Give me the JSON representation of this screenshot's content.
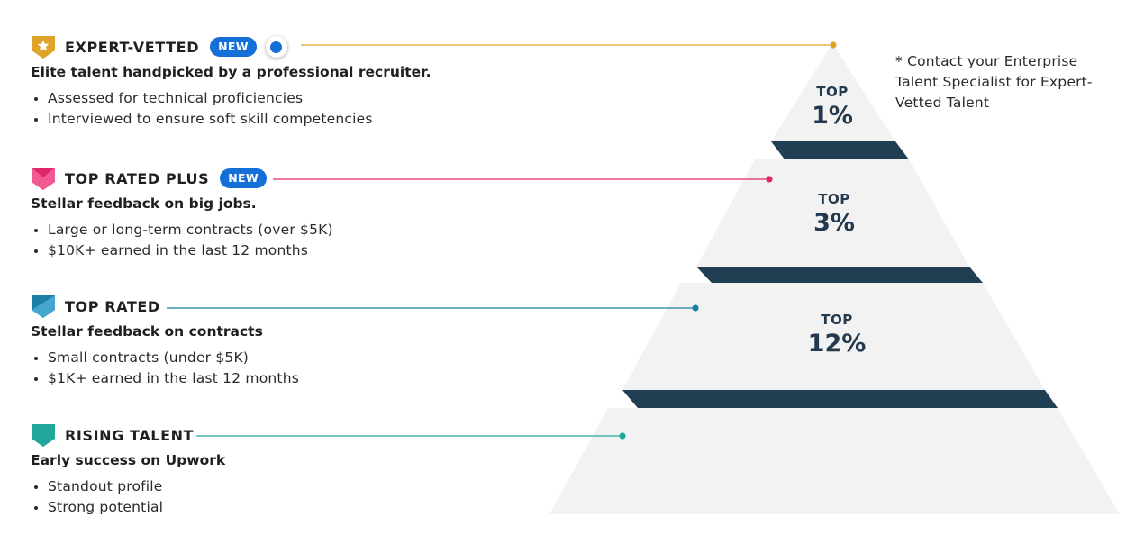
{
  "tiers": [
    {
      "title": "EXPERT-VETTED",
      "new_badge": "NEW",
      "subtitle": "Elite talent handpicked by a professional recruiter.",
      "bullets": [
        "Assessed for technical proficiencies",
        "Interviewed to ensure soft skill competencies"
      ],
      "color": "#e0a329",
      "badge_icon": "star-shield-icon"
    },
    {
      "title": "TOP RATED PLUS",
      "new_badge": "NEW",
      "subtitle": "Stellar feedback on big jobs.",
      "bullets": [
        "Large or long-term contracts (over $5K)",
        "$10K+ earned in the last 12 months"
      ],
      "color": "#e0276c",
      "badge_icon": "pink-shield-icon"
    },
    {
      "title": "TOP RATED",
      "subtitle": "Stellar feedback on contracts",
      "bullets": [
        "Small contracts (under $5K)",
        "$1K+ earned in the last 12 months"
      ],
      "color": "#1b7fa6",
      "badge_icon": "blue-shield-icon"
    },
    {
      "title": "RISING TALENT",
      "subtitle": "Early success on Upwork",
      "bullets": [
        "Standout profile",
        "Strong potential"
      ],
      "color": "#1fa89a",
      "badge_icon": "teal-shield-icon"
    }
  ],
  "pyramid": {
    "levels": [
      {
        "top_label": "TOP",
        "value": "1%"
      },
      {
        "top_label": "TOP",
        "value": "3%"
      },
      {
        "top_label": "TOP",
        "value": "12%"
      }
    ],
    "fill_color": "#f2f2f2",
    "band_color": "#213f52"
  },
  "footnote": "* Contact your Enterprise Talent Specialist for Expert-Vetted Talent",
  "accent_blue": "#1470d6"
}
